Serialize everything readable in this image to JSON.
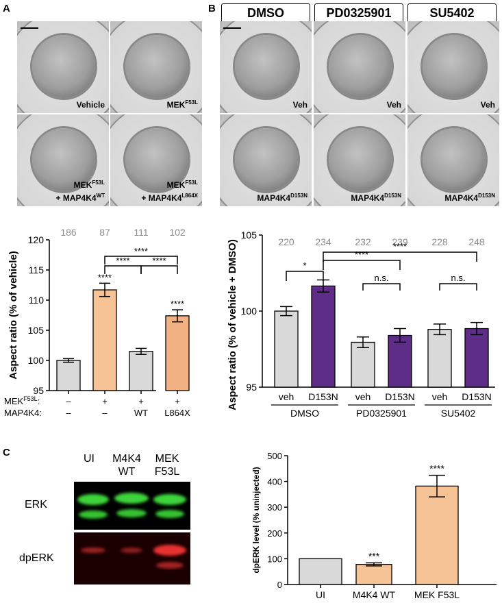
{
  "panel_letters": {
    "a": "A",
    "b": "B",
    "c": "C"
  },
  "panel_a": {
    "images": [
      {
        "label": "Vehicle",
        "sup": "",
        "line2": "",
        "line2_sup": ""
      },
      {
        "label": "MEK",
        "sup": "F53L",
        "line2": "",
        "line2_sup": ""
      },
      {
        "label": "MEK",
        "sup": "F53L",
        "line2": "+ MAP4K4",
        "line2_sup": "WT"
      },
      {
        "label": "MEK",
        "sup": "F53L",
        "line2": "+ MAP4K4",
        "line2_sup": "L864X"
      }
    ]
  },
  "panel_b": {
    "headers": [
      "DMSO",
      "PD0325901",
      "SU5402"
    ],
    "images_top": [
      "Veh",
      "Veh",
      "Veh"
    ],
    "images_bottom": [
      {
        "label": "MAP4K4",
        "sup": "D153N"
      },
      {
        "label": "MAP4K4",
        "sup": "D153N"
      },
      {
        "label": "MAP4K4",
        "sup": "D153N"
      }
    ]
  },
  "blot": {
    "lanes": [
      {
        "line1": "UI",
        "line2": ""
      },
      {
        "line1": "M4K4",
        "line2": "WT"
      },
      {
        "line1": "MEK",
        "line2": "F53L"
      }
    ],
    "rows": [
      "ERK",
      "dpERK"
    ]
  },
  "colors": {
    "gray_bar": "#d9d9d9",
    "orange_bar": "#f5c396",
    "orange_bar2": "#f2b182",
    "purple_bar": "#5e2d87",
    "count_gray": "#8c8c8c",
    "erk_green": "#3ed43a",
    "dperk_red": "#e83030"
  },
  "chart_data": [
    {
      "type": "bar",
      "panel": "A",
      "title": "",
      "xlabel": "",
      "ylabel": "Aspect ratio (% of vehicle)",
      "ylim": [
        95,
        120
      ],
      "yticks": [
        "95",
        "100",
        "105",
        "110",
        "115",
        "120"
      ],
      "categories": [
        "Vehicle",
        "MEK F53L",
        "MEK F53L + MAP4K4 WT",
        "MEK F53L + MAP4K4 L864X"
      ],
      "values": [
        100.0,
        111.7,
        101.5,
        107.4
      ],
      "errors": [
        0.3,
        1.1,
        0.5,
        1.0
      ],
      "n_labels": [
        "186",
        "87",
        "111",
        "102"
      ],
      "bar_stars": [
        "",
        "****",
        "",
        "****"
      ],
      "row1_label": "MEK",
      "row1_sup": "F53L",
      "row1_values": [
        "–",
        "+",
        "+",
        "+"
      ],
      "row2_label": "MAP4K4:",
      "row2_values": [
        "–",
        "–",
        "WT",
        "L864X"
      ],
      "brackets": [
        {
          "from": 1,
          "to": 3,
          "text": "****"
        },
        {
          "from": 1,
          "to": 2,
          "text": "****"
        },
        {
          "from": 2,
          "to": 3,
          "text": "****"
        }
      ]
    },
    {
      "type": "bar",
      "panel": "B",
      "title": "",
      "xlabel": "",
      "ylabel": "Aspect ratio (% of vehicle + DMSO)",
      "ylim": [
        95,
        105
      ],
      "yticks": [
        "95",
        "100",
        "105"
      ],
      "categories": [
        "veh",
        "D153N",
        "veh",
        "D153N",
        "veh",
        "D153N"
      ],
      "groups": [
        "DMSO",
        "PD0325901",
        "SU5402"
      ],
      "values": [
        100.0,
        101.65,
        97.95,
        98.4,
        98.8,
        98.85
      ],
      "errors": [
        0.3,
        0.4,
        0.35,
        0.45,
        0.35,
        0.4
      ],
      "n_labels": [
        "220",
        "234",
        "232",
        "239",
        "228",
        "248"
      ],
      "brackets": [
        {
          "from": 0,
          "to": 1,
          "text": "*"
        },
        {
          "from": 1,
          "to": 3,
          "text": "****"
        },
        {
          "from": 1,
          "to": 5,
          "text": "****"
        },
        {
          "from": 2,
          "to": 3,
          "text": "n.s."
        },
        {
          "from": 4,
          "to": 5,
          "text": "n.s."
        }
      ]
    },
    {
      "type": "bar",
      "panel": "C",
      "title": "",
      "xlabel": "",
      "ylabel": "dpERK level (% uninjected)",
      "ylim": [
        0,
        500
      ],
      "yticks": [
        "0",
        "100",
        "200",
        "300",
        "400",
        "500"
      ],
      "categories": [
        "UI",
        "M4K4 WT",
        "MEK F53L"
      ],
      "values": [
        100,
        78,
        382
      ],
      "errors": [
        0,
        6,
        42
      ],
      "bar_stars": [
        "",
        "***",
        "****"
      ]
    }
  ]
}
